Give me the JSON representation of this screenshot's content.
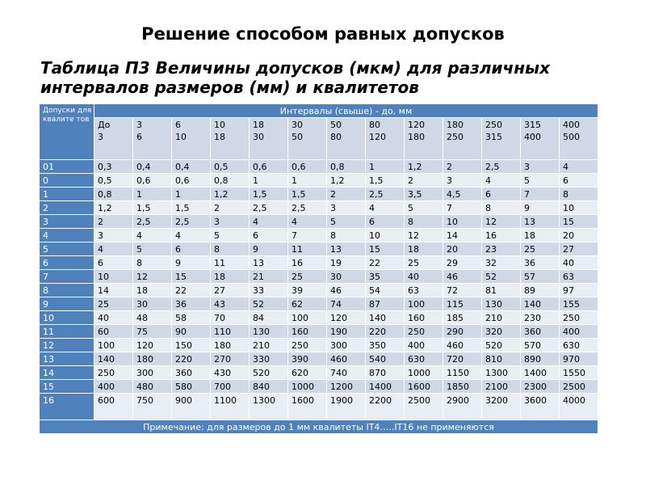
{
  "main_title": "Решение способом равных допусков",
  "table_title_line1": "Таблица П3 Величины допусков (мкм) для различных",
  "table_title_line2": "интервалов размеров (мм) и квалитетов",
  "corner_header": "Допуски для квалите тов",
  "intervals_header": "Интервалы (свыше) - до, мм",
  "intervals": [
    {
      "from": "До",
      "to": "3"
    },
    {
      "from": "3",
      "to": "6"
    },
    {
      "from": "6",
      "to": "10"
    },
    {
      "from": "10",
      "to": "18"
    },
    {
      "from": "18",
      "to": "30"
    },
    {
      "from": "30",
      "to": "50"
    },
    {
      "from": "50",
      "to": "80"
    },
    {
      "from": "80",
      "to": "120"
    },
    {
      "from": "120",
      "to": "180"
    },
    {
      "from": "180",
      "to": "250"
    },
    {
      "from": "250",
      "to": "315"
    },
    {
      "from": "315",
      "to": "400"
    },
    {
      "from": "400",
      "to": "500"
    }
  ],
  "rows": [
    {
      "grade": "01",
      "values": [
        "0,3",
        "0,4",
        "0,4",
        "0,5",
        "0,6",
        "0,6",
        "0,8",
        "1",
        "1,2",
        "2",
        "2,5",
        "3",
        "4"
      ]
    },
    {
      "grade": "0",
      "values": [
        "0,5",
        "0,6",
        "0,6",
        "0,8",
        "1",
        "1",
        "1,2",
        "1,5",
        "2",
        "3",
        "4",
        "5",
        "6"
      ]
    },
    {
      "grade": "1",
      "values": [
        "0,8",
        "1",
        "1",
        "1,2",
        "1,5",
        "1,5",
        "2",
        "2,5",
        "3,5",
        "4,5",
        "6",
        "7",
        "8"
      ]
    },
    {
      "grade": "2",
      "values": [
        "1,2",
        "1,5",
        "1,5",
        "2",
        "2,5",
        "2,5",
        "3",
        "4",
        "5",
        "7",
        "8",
        "9",
        "10"
      ]
    },
    {
      "grade": "3",
      "values": [
        "2",
        "2,5",
        "2,5",
        "3",
        "4",
        "4",
        "5",
        "6",
        "8",
        "10",
        "12",
        "13",
        "15"
      ]
    },
    {
      "grade": "4",
      "values": [
        "3",
        "4",
        "4",
        "5",
        "6",
        "7",
        "8",
        "10",
        "12",
        "14",
        "16",
        "18",
        "20"
      ]
    },
    {
      "grade": "5",
      "values": [
        "4",
        "5",
        "6",
        "8",
        "9",
        "11",
        "13",
        "15",
        "18",
        "20",
        "23",
        "25",
        "27"
      ]
    },
    {
      "grade": "6",
      "values": [
        "6",
        "8",
        "9",
        "11",
        "13",
        "16",
        "19",
        "22",
        "25",
        "29",
        "32",
        "36",
        "40"
      ]
    },
    {
      "grade": "7",
      "values": [
        "10",
        "12",
        "15",
        "18",
        "21",
        "25",
        "30",
        "35",
        "40",
        "46",
        "52",
        "57",
        "63"
      ]
    },
    {
      "grade": "8",
      "values": [
        "14",
        "18",
        "22",
        "27",
        "33",
        "39",
        "46",
        "54",
        "63",
        "72",
        "81",
        "89",
        "97"
      ]
    },
    {
      "grade": "9",
      "values": [
        "25",
        "30",
        "36",
        "43",
        "52",
        "62",
        "74",
        "87",
        "100",
        "115",
        "130",
        "140",
        "155"
      ]
    },
    {
      "grade": "10",
      "values": [
        "40",
        "48",
        "58",
        "70",
        "84",
        "100",
        "120",
        "140",
        "160",
        "185",
        "210",
        "230",
        "250"
      ]
    },
    {
      "grade": "11",
      "values": [
        "60",
        "75",
        "90",
        "110",
        "130",
        "160",
        "190",
        "220",
        "250",
        "290",
        "320",
        "360",
        "400"
      ]
    },
    {
      "grade": "12",
      "values": [
        "100",
        "120",
        "150",
        "180",
        "210",
        "250",
        "300",
        "350",
        "400",
        "460",
        "520",
        "570",
        "630"
      ]
    },
    {
      "grade": "13",
      "values": [
        "140",
        "180",
        "220",
        "270",
        "330",
        "390",
        "460",
        "540",
        "630",
        "720",
        "810",
        "890",
        "970"
      ]
    },
    {
      "grade": "14",
      "values": [
        "250",
        "300",
        "360",
        "430",
        "520",
        "620",
        "740",
        "870",
        "1000",
        "1150",
        "1300",
        "1400",
        "1550"
      ]
    },
    {
      "grade": "15",
      "values": [
        "400",
        "480",
        "580",
        "700",
        "840",
        "1000",
        "1200",
        "1400",
        "1600",
        "1850",
        "2100",
        "2300",
        "2500"
      ]
    },
    {
      "grade": "16",
      "values": [
        "600",
        "750",
        "900",
        "1100",
        "1300",
        "1600",
        "1900",
        "2200",
        "2500",
        "2900",
        "3200",
        "3600",
        "4000"
      ]
    }
  ],
  "note": "Примечание: для размеров до 1 мм квалитеты IT4…..IT16 не применяются",
  "colors": {
    "header_blue": "#4f81bd",
    "row_dark": "#d0d8e8",
    "row_light": "#e9edf4"
  }
}
